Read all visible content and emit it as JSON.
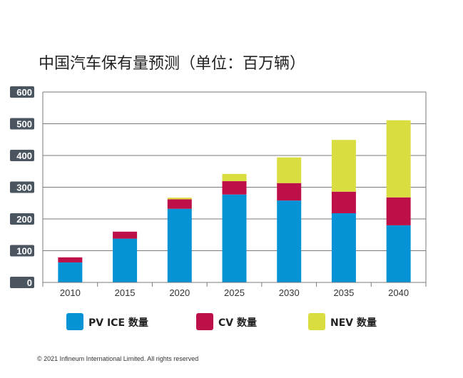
{
  "chart_data": {
    "type": "bar",
    "stacked": true,
    "title": "中国汽车保有量预测（单位：百万辆）",
    "categories": [
      "2010",
      "2015",
      "2020",
      "2025",
      "2030",
      "2035",
      "2040"
    ],
    "series": [
      {
        "name": "PV ICE 数量",
        "color": "#0693d6",
        "values": [
          63,
          138,
          232,
          277,
          258,
          218,
          180
        ]
      },
      {
        "name": "CV 数量",
        "color": "#be1048",
        "values": [
          16,
          22,
          30,
          42,
          55,
          68,
          88
        ]
      },
      {
        "name": "NEV 数量",
        "color": "#dadd3f",
        "values": [
          0,
          0,
          5,
          23,
          81,
          163,
          243
        ]
      }
    ],
    "ylim": [
      0,
      600
    ],
    "yticks": [
      "0",
      "100",
      "200",
      "300",
      "400",
      "500",
      "600"
    ],
    "xlabel": "",
    "ylabel": "",
    "grid": true,
    "legend_position": "bottom"
  },
  "footer": {
    "copyright": "© 2021 Infineum International Limited. All rights reserved"
  }
}
